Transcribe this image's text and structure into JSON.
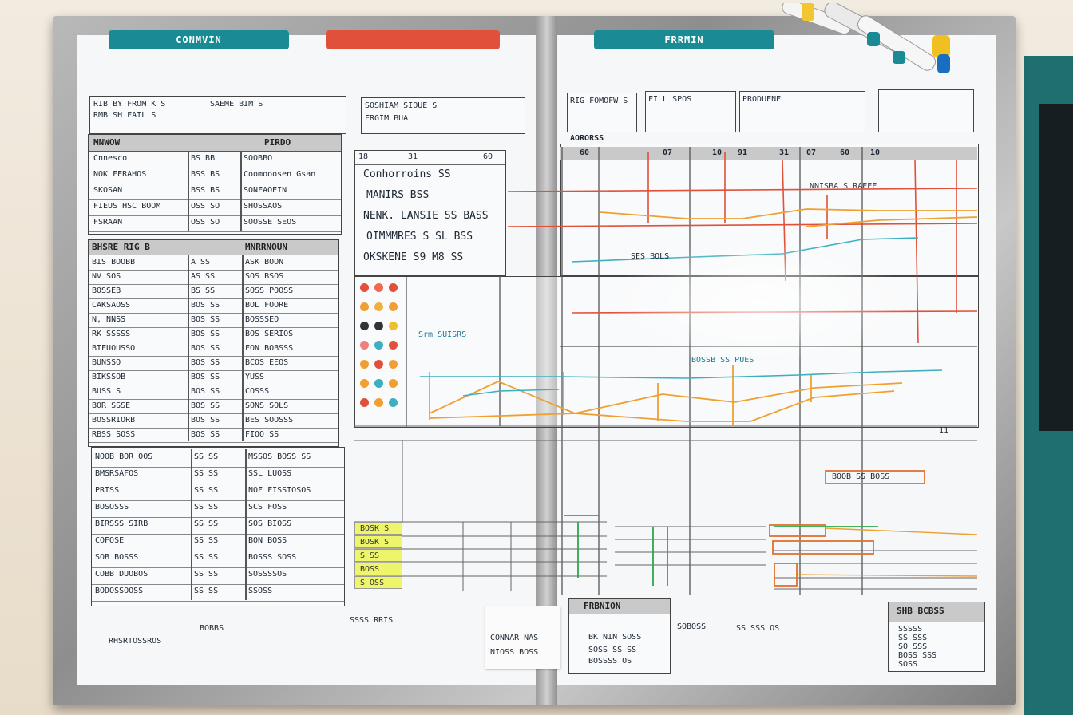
{
  "tabs": {
    "left": "CONMVIN",
    "right": "FRRMIN"
  },
  "colors": {
    "teal": "#1a8a95",
    "red": "#e0503a",
    "orange": "#f0a030",
    "yellow": "#eef56a",
    "green": "#2aa84a"
  },
  "top_notes": [
    "RIB BY FROM K S",
    "RMB SH FAIL S",
    "SAEME BIM S",
    "SOSHIAM SIOUE S",
    "FRGIM BUA",
    "RIG FOMOFW S",
    "FILL SPOS",
    "PRODUENE"
  ],
  "left_table_1": {
    "title": "MNWOW",
    "subtitle": "PIRDO",
    "rows": [
      [
        "Cnnesco",
        "BS BB",
        "SOOBBO"
      ],
      [
        "NOK FERAHOS",
        "BSS BS",
        "Coomooosen Gsan"
      ],
      [
        "SKOSAN",
        "BSS BS",
        "SONFAOEIN"
      ],
      [
        "FIEUS HSC BOOM",
        "OSS SO",
        "SHOSSAOS"
      ],
      [
        "FSRAAN",
        "OSS SO",
        "SOOSSE SEOS"
      ]
    ]
  },
  "left_table_2": {
    "title": "BHSRE RIG B",
    "subtitle": "MNRRNOUN",
    "rows": [
      [
        "BIS BOOBB",
        "A SS",
        "ASK BOON"
      ],
      [
        "NV SOS",
        "AS SS",
        "SOS BSOS"
      ],
      [
        "BOSSEB",
        "BS SS",
        "SOSS POOSS"
      ],
      [
        "CAKSAOSS",
        "BOS SS",
        "BOL FOORE"
      ],
      [
        "N, NNSS",
        "BOS SS",
        "BOSSSEO"
      ],
      [
        "RK SSSSS",
        "BOS SS",
        "BOS SERIOS"
      ],
      [
        "BIFUOUSSO",
        "BOS SS",
        "FON BOBSSS"
      ],
      [
        "BUNSSO",
        "BOS SS",
        "BCOS EEOS"
      ],
      [
        "BIKSSOB",
        "BOS SS",
        "YUSS"
      ],
      [
        "BUSS S",
        "BOS SS",
        "COSSS"
      ],
      [
        "BOR SSSE",
        "BOS SS",
        "SONS SOLS"
      ],
      [
        "BOSSRIORB",
        "BOS SS",
        "BES SOOSSS"
      ],
      [
        "RBSS SOSS",
        "BOS SS",
        "FIOO SS"
      ]
    ]
  },
  "left_table_3": {
    "rows": [
      [
        "NOOB BOR OOS",
        "SS SS",
        "MSSOS BOSS SS"
      ],
      [
        "BMSRSAFOS",
        "SS SS",
        "SSL LUOSS"
      ],
      [
        "PRISS",
        "SS SS",
        "NOF FISSIOSOS"
      ],
      [
        "BOSOSSS",
        "SS SS",
        "SCS FOSS"
      ],
      [
        "BIRSSS SIRB",
        "SS SS",
        "SOS BIOSS"
      ],
      [
        "COFOSE",
        "SS SS",
        "BON BOSS"
      ],
      [
        "SOB BOSSS",
        "SS SS",
        "BOSSS SOSS"
      ],
      [
        "COBB DUOBOS",
        "SS SS",
        "SOSSSSOS"
      ],
      [
        "BODOSSOOSS",
        "SS SS",
        "SSOSS"
      ]
    ]
  },
  "mid_list": [
    "Conhorroins SS",
    "MANIRS BSS",
    "NENK. LANSIE SS BASS",
    "OIMMMRES S SL BSS",
    "OKSKENE S9 M8 SS"
  ],
  "mid_header_nums": [
    "18",
    "31",
    "60",
    "11"
  ],
  "right_header_nums": [
    "60",
    "07",
    "10",
    "91",
    "31",
    "07",
    "60",
    "10"
  ],
  "chart_labels": {
    "top": "AORORSS",
    "mid_a": "NNISBA S RAEEE",
    "mid_b": "Srm SUISRS",
    "mid_c": "SES BOLS",
    "mid_d": "BOSSB SS PUES",
    "mid_e": "BOOB SS BOSS"
  },
  "stickies": [
    "BOSK S",
    "BOSK S",
    "S SS",
    "BOSS",
    "S OSS"
  ],
  "bottom_right_box": {
    "title": "FRBNION",
    "lines": [
      "BK NIN SOSS",
      "SOSS SS SS",
      "BOSSSS OS"
    ]
  },
  "bottom_notes": [
    "RHSRTOSSROS",
    "BOBBS",
    "SSSS RRIS",
    "CONNAR NAS",
    "NIOSS BOSS",
    "SOBOSS",
    "SS SSS OS"
  ],
  "far_right_box": {
    "title": "SHB BCBSS",
    "lines": [
      "SSSSS",
      "SS SSS",
      "SO SSS",
      "BOSS SSS",
      "SOSS"
    ]
  }
}
